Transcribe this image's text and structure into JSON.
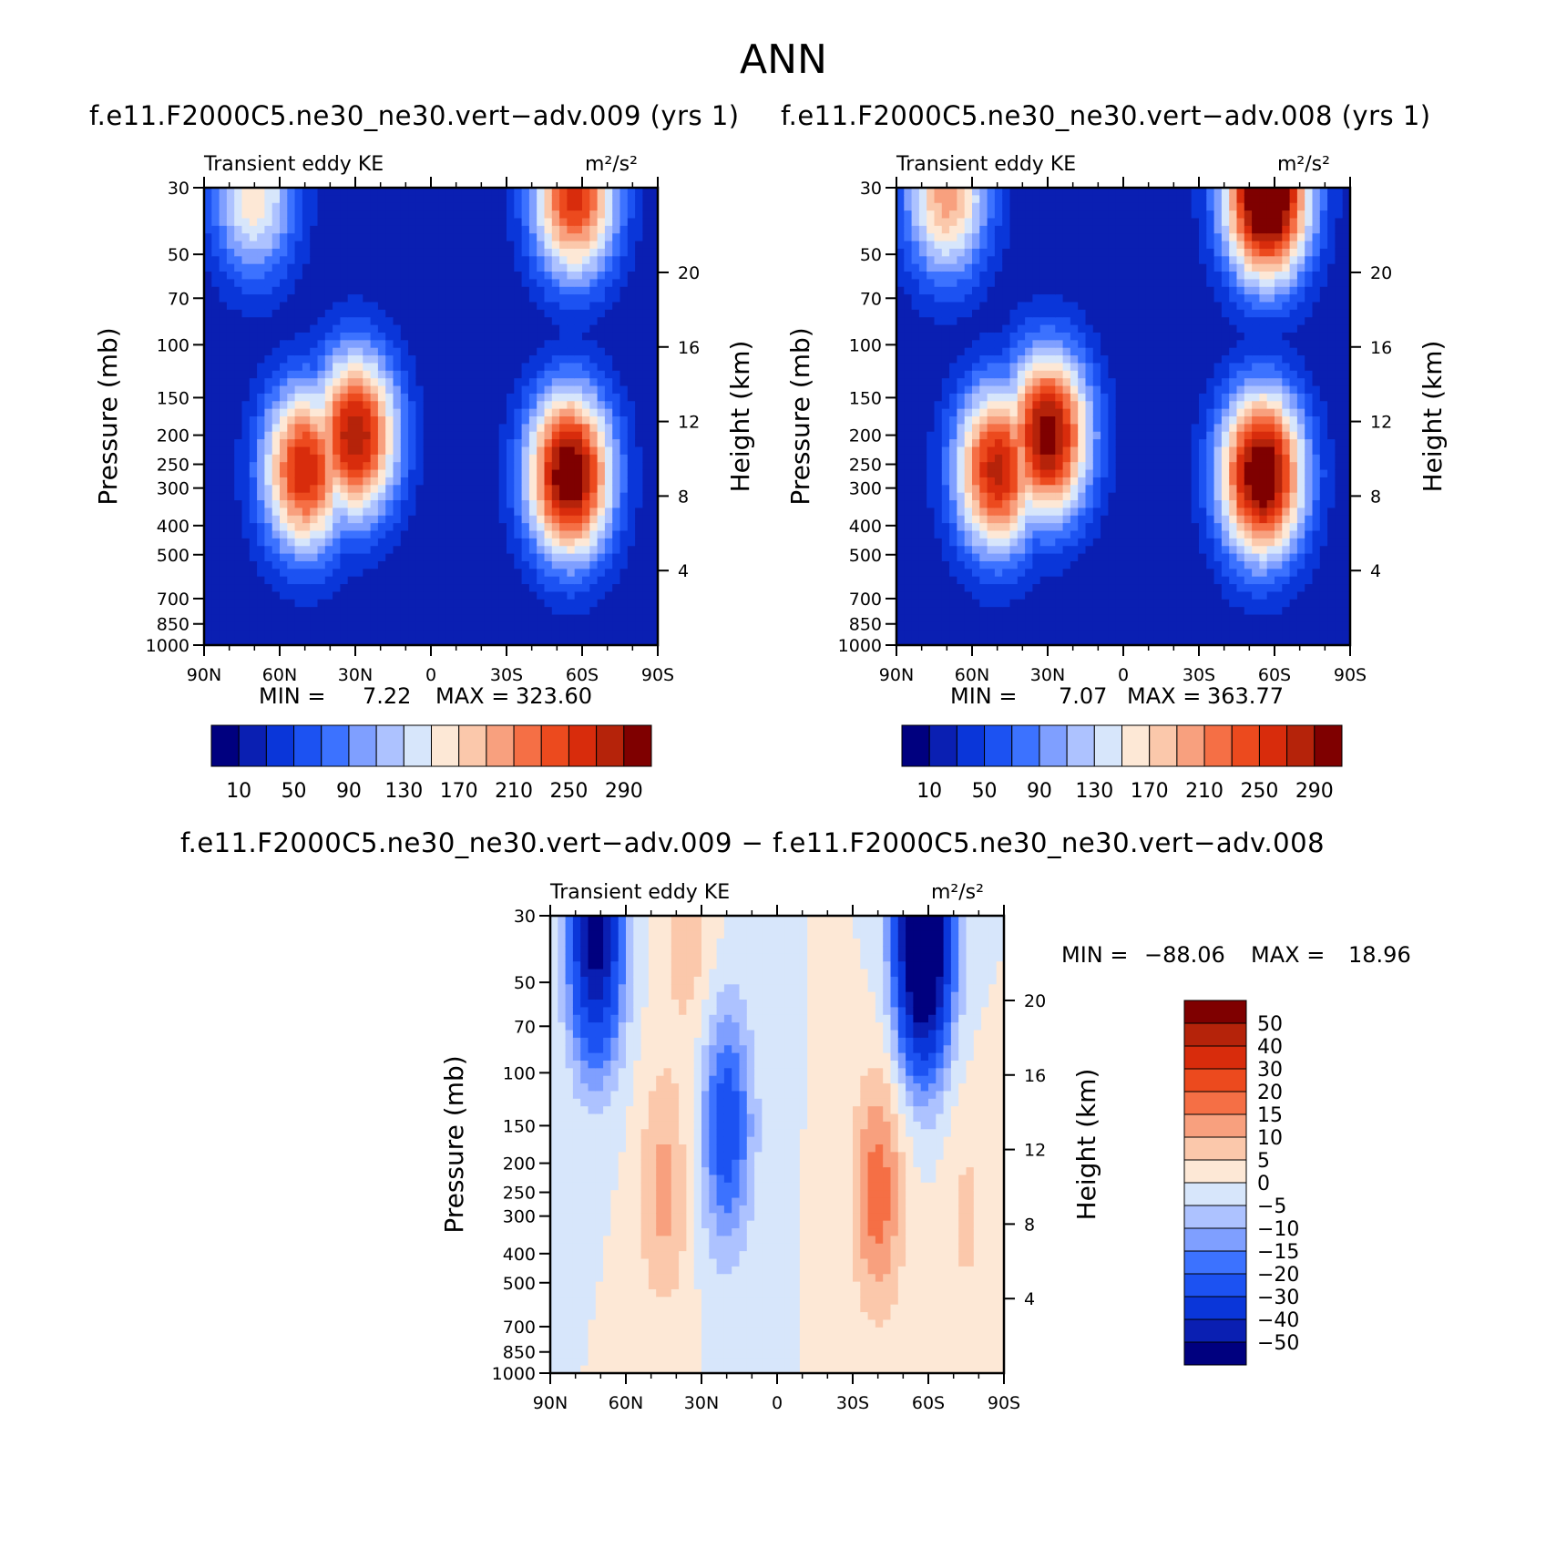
{
  "page_title": "ANN",
  "colors": {
    "abs_scale": [
      "#00007f",
      "#0a1fb2",
      "#0a36d9",
      "#1c52f2",
      "#3c72ff",
      "#7f9fff",
      "#adc2ff",
      "#d7e6fb",
      "#fde8d6",
      "#fbc8ab",
      "#f8a07e",
      "#f56f45",
      "#ec4a1e",
      "#d82c0c",
      "#b5230a",
      "#7f0000"
    ],
    "diff_scale": [
      "#00007f",
      "#0a1fb2",
      "#0a36d9",
      "#1c52f2",
      "#3c72ff",
      "#7f9fff",
      "#adc2ff",
      "#d7e6fb",
      "#fde8d6",
      "#fbc8ab",
      "#f8a07e",
      "#f56f45",
      "#ec4a1e",
      "#d82c0c",
      "#b5230a",
      "#7f0000"
    ]
  },
  "panels": {
    "p1": {
      "run_title": "f.e11.F2000C5.ne30_ne30.vert−adv.009 (yrs 1)",
      "left_label": "Transient eddy KE",
      "units_label": "m²/s²",
      "min_text": "MIN = ",
      "min_value": "7.22",
      "max_text": "MAX = ",
      "max_value": "323.60"
    },
    "p2": {
      "run_title": "f.e11.F2000C5.ne30_ne30.vert−adv.008 (yrs 1)",
      "left_label": "Transient eddy KE",
      "units_label": "m²/s²",
      "min_text": "MIN = ",
      "min_value": "7.07",
      "max_text": "MAX = ",
      "max_value": "363.77"
    },
    "p3": {
      "run_title": "f.e11.F2000C5.ne30_ne30.vert−adv.009 − f.e11.F2000C5.ne30_ne30.vert−adv.008",
      "left_label": "Transient eddy KE",
      "units_label": "m²/s²",
      "min_text": "MIN = ",
      "min_value": "−88.06",
      "max_text": "MAX = ",
      "max_value": "18.96"
    }
  },
  "chart_data": [
    {
      "type": "heatmap",
      "title": "f.e11.F2000C5.ne30_ne30.vert−adv.009 (yrs 1)",
      "subtitle": "Transient eddy KE",
      "units": "m²/s²",
      "xlabel": "",
      "ylabel": "Pressure (mb)",
      "y2label": "Height (km)",
      "x_ticks": [
        "90N",
        "60N",
        "30N",
        "0",
        "30S",
        "60S",
        "90S"
      ],
      "y_ticks": [
        "30",
        "50",
        "70",
        "100",
        "150",
        "200",
        "250",
        "300",
        "400",
        "500",
        "700",
        "850",
        "1000"
      ],
      "y2_ticks": [
        "20",
        "16",
        "12",
        "8",
        "4"
      ],
      "y_scale": "log",
      "colorbar_levels": [
        "10",
        "50",
        "90",
        "130",
        "170",
        "210",
        "250",
        "290"
      ],
      "min": 7.22,
      "max": 323.6,
      "features": [
        {
          "lat": -55,
          "p": 270,
          "value": 323
        },
        {
          "lat": 30,
          "p": 200,
          "value": 290
        },
        {
          "lat": 50,
          "p": 260,
          "value": 270
        },
        {
          "lat": -57,
          "p": 32,
          "value": 260
        },
        {
          "lat": 70,
          "p": 32,
          "value": 165
        },
        {
          "lat": 0,
          "p": 40,
          "value": 8
        },
        {
          "lat": 0,
          "p": 700,
          "value": 10
        }
      ]
    },
    {
      "type": "heatmap",
      "title": "f.e11.F2000C5.ne30_ne30.vert−adv.008 (yrs 1)",
      "subtitle": "Transient eddy KE",
      "units": "m²/s²",
      "xlabel": "",
      "ylabel": "Pressure (mb)",
      "y2label": "Height (km)",
      "x_ticks": [
        "90N",
        "60N",
        "30N",
        "0",
        "30S",
        "60S",
        "90S"
      ],
      "y_ticks": [
        "30",
        "50",
        "70",
        "100",
        "150",
        "200",
        "250",
        "300",
        "400",
        "500",
        "700",
        "850",
        "1000"
      ],
      "y2_ticks": [
        "20",
        "16",
        "12",
        "8",
        "4"
      ],
      "y_scale": "log",
      "colorbar_levels": [
        "10",
        "50",
        "90",
        "130",
        "170",
        "210",
        "250",
        "290"
      ],
      "min": 7.07,
      "max": 363.77,
      "features": [
        {
          "lat": -55,
          "p": 270,
          "value": 330
        },
        {
          "lat": 30,
          "p": 200,
          "value": 310
        },
        {
          "lat": 50,
          "p": 260,
          "value": 280
        },
        {
          "lat": -57,
          "p": 32,
          "value": 363
        },
        {
          "lat": 70,
          "p": 32,
          "value": 200
        },
        {
          "lat": 0,
          "p": 40,
          "value": 8
        },
        {
          "lat": 0,
          "p": 700,
          "value": 10
        }
      ]
    },
    {
      "type": "heatmap",
      "title": "f.e11.F2000C5.ne30_ne30.vert−adv.009 − f.e11.F2000C5.ne30_ne30.vert−adv.008",
      "subtitle": "Transient eddy KE",
      "units": "m²/s²",
      "xlabel": "",
      "ylabel": "Pressure (mb)",
      "y2label": "Height (km)",
      "x_ticks": [
        "90N",
        "60N",
        "30N",
        "0",
        "30S",
        "60S",
        "90S"
      ],
      "y_ticks": [
        "30",
        "50",
        "70",
        "100",
        "150",
        "200",
        "250",
        "300",
        "400",
        "500",
        "700",
        "850",
        "1000"
      ],
      "y2_ticks": [
        "20",
        "16",
        "12",
        "8",
        "4"
      ],
      "y_scale": "log",
      "colorbar_levels": [
        "50",
        "40",
        "30",
        "20",
        "15",
        "10",
        "5",
        "0",
        "−5",
        "−10",
        "−15",
        "−20",
        "−30",
        "−40",
        "−50"
      ],
      "min": -88.06,
      "max": 18.96,
      "features": [
        {
          "lat": -58,
          "p": 35,
          "value": -88
        },
        {
          "lat": 72,
          "p": 35,
          "value": -55
        },
        {
          "lat": 20,
          "p": 150,
          "value": -25
        },
        {
          "lat": -40,
          "p": 250,
          "value": 18
        },
        {
          "lat": 45,
          "p": 250,
          "value": 12
        },
        {
          "lat": 35,
          "p": 35,
          "value": 8
        },
        {
          "lat": -75,
          "p": 300,
          "value": 6
        }
      ]
    }
  ]
}
